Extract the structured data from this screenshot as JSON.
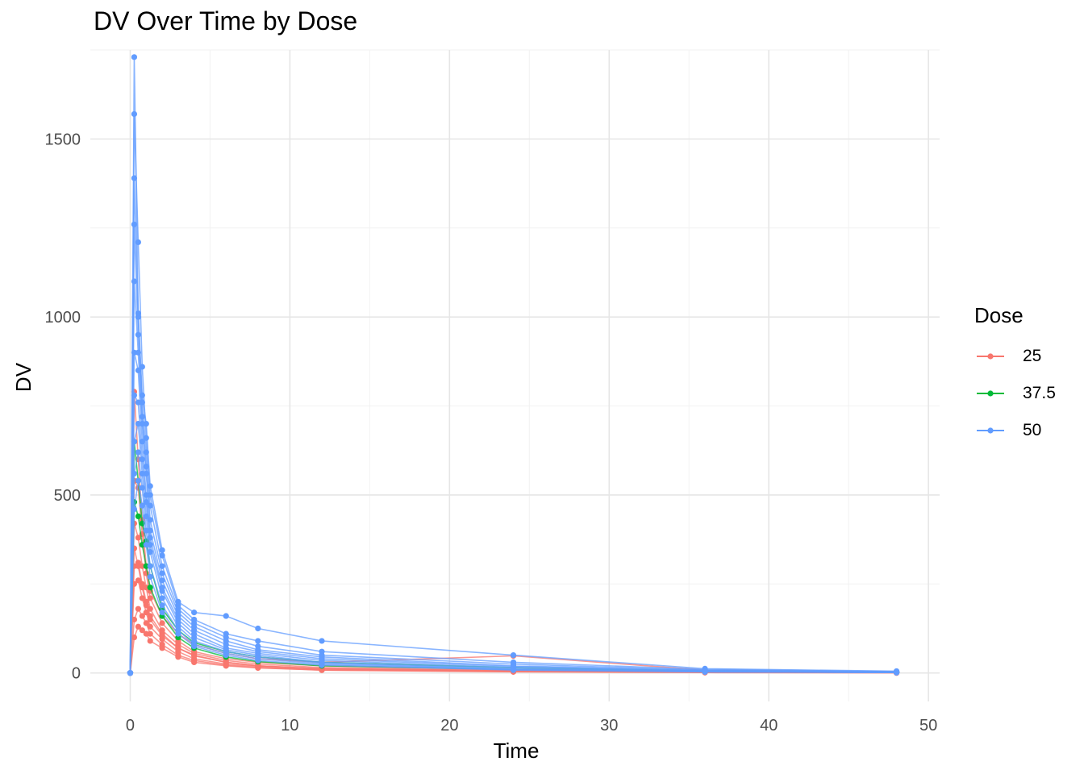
{
  "chart_data": {
    "type": "line",
    "title": "DV Over Time by Dose",
    "xlabel": "Time",
    "ylabel": "DV",
    "xlim": [
      -2.5,
      50.7
    ],
    "ylim": [
      -80,
      1750
    ],
    "xticks": [
      0,
      10,
      20,
      30,
      40,
      50
    ],
    "yticks": [
      0,
      500,
      1000,
      1500
    ],
    "grid": true,
    "legend": {
      "title": "Dose",
      "position": "right"
    },
    "series": [
      {
        "name": "25",
        "color": "#F8766D",
        "times": [
          0,
          0.25,
          0.5,
          0.75,
          1,
          1.25,
          2,
          3,
          4,
          6,
          8,
          12,
          24,
          36,
          48
        ],
        "profiles": [
          [
            0,
            790,
            600,
            430,
            300,
            230,
            160,
            110,
            80,
            55,
            40,
            30,
            48,
            8,
            3
          ],
          [
            0,
            540,
            520,
            390,
            280,
            210,
            140,
            90,
            60,
            40,
            30,
            20,
            10,
            5,
            2
          ],
          [
            0,
            420,
            380,
            300,
            240,
            180,
            120,
            80,
            55,
            35,
            25,
            15,
            8,
            4,
            1
          ],
          [
            0,
            300,
            310,
            250,
            200,
            160,
            110,
            70,
            50,
            30,
            20,
            12,
            6,
            3,
            1
          ],
          [
            0,
            250,
            260,
            210,
            170,
            130,
            95,
            60,
            40,
            25,
            18,
            10,
            5,
            2,
            1
          ],
          [
            0,
            150,
            180,
            160,
            140,
            110,
            80,
            50,
            35,
            22,
            15,
            8,
            4,
            2,
            1
          ],
          [
            0,
            100,
            130,
            120,
            110,
            90,
            70,
            45,
            30,
            20,
            14,
            8,
            3,
            1,
            0
          ],
          [
            0,
            350,
            300,
            240,
            190,
            150,
            105,
            70,
            48,
            30,
            20,
            12,
            6,
            3,
            1
          ]
        ]
      },
      {
        "name": "37.5",
        "color": "#00BA38",
        "times": [
          0,
          0.25,
          0.5,
          0.75,
          1,
          1.25,
          2,
          3,
          4,
          6,
          8,
          12,
          24,
          36,
          48
        ],
        "profiles": [
          [
            0,
            650,
            540,
            420,
            370,
            300,
            180,
            120,
            85,
            60,
            45,
            30,
            15,
            6,
            3
          ],
          [
            0,
            480,
            440,
            360,
            300,
            240,
            160,
            100,
            70,
            45,
            32,
            20,
            10,
            4,
            2
          ]
        ]
      },
      {
        "name": "50",
        "color": "#619CFF",
        "times": [
          0,
          0.25,
          0.5,
          0.75,
          1,
          1.25,
          2,
          3,
          4,
          6,
          8,
          12,
          24,
          36,
          48
        ],
        "profiles": [
          [
            0,
            1730,
            1010,
            780,
            700,
            525,
            345,
            200,
            170,
            160,
            125,
            90,
            50,
            12,
            5
          ],
          [
            0,
            1570,
            1210,
            860,
            660,
            500,
            330,
            190,
            150,
            110,
            90,
            60,
            30,
            10,
            4
          ],
          [
            0,
            1390,
            1000,
            760,
            620,
            470,
            300,
            180,
            140,
            100,
            75,
            50,
            25,
            8,
            3
          ],
          [
            0,
            1260,
            950,
            720,
            580,
            430,
            280,
            170,
            130,
            90,
            65,
            45,
            20,
            7,
            3
          ],
          [
            0,
            1100,
            900,
            700,
            560,
            400,
            260,
            160,
            120,
            80,
            60,
            40,
            18,
            6,
            2
          ],
          [
            0,
            900,
            850,
            650,
            500,
            380,
            240,
            150,
            110,
            70,
            55,
            35,
            15,
            5,
            2
          ],
          [
            0,
            780,
            760,
            600,
            480,
            360,
            230,
            140,
            100,
            65,
            50,
            30,
            12,
            4,
            2
          ],
          [
            0,
            650,
            700,
            560,
            440,
            340,
            210,
            130,
            90,
            60,
            45,
            28,
            10,
            4,
            1
          ],
          [
            0,
            560,
            620,
            520,
            400,
            300,
            190,
            120,
            80,
            55,
            40,
            25,
            9,
            3,
            1
          ],
          [
            0,
            460,
            540,
            470,
            360,
            270,
            170,
            110,
            75,
            50,
            35,
            22,
            8,
            3,
            1
          ]
        ]
      }
    ]
  }
}
